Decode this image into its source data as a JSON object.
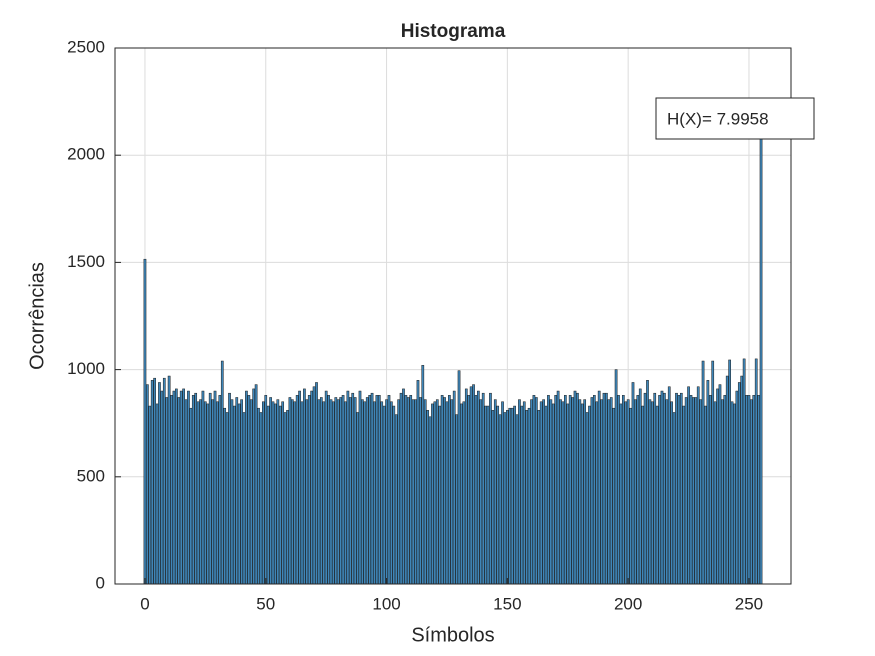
{
  "chart_data": {
    "type": "bar",
    "title": "Histograma",
    "x_label": "Símbolos",
    "y_label": "Ocorrências",
    "annotation": "H(X)= 7.9958",
    "x": [
      0,
      1,
      2,
      3,
      4,
      5,
      6,
      7,
      8,
      9,
      10,
      11,
      12,
      13,
      14,
      15,
      16,
      17,
      18,
      19,
      20,
      21,
      22,
      23,
      24,
      25,
      26,
      27,
      28,
      29,
      30,
      31,
      32,
      33,
      34,
      35,
      36,
      37,
      38,
      39,
      40,
      41,
      42,
      43,
      44,
      45,
      46,
      47,
      48,
      49,
      50,
      51,
      52,
      53,
      54,
      55,
      56,
      57,
      58,
      59,
      60,
      61,
      62,
      63,
      64,
      65,
      66,
      67,
      68,
      69,
      70,
      71,
      72,
      73,
      74,
      75,
      76,
      77,
      78,
      79,
      80,
      81,
      82,
      83,
      84,
      85,
      86,
      87,
      88,
      89,
      90,
      91,
      92,
      93,
      94,
      95,
      96,
      97,
      98,
      99,
      100,
      101,
      102,
      103,
      104,
      105,
      106,
      107,
      108,
      109,
      110,
      111,
      112,
      113,
      114,
      115,
      116,
      117,
      118,
      119,
      120,
      121,
      122,
      123,
      124,
      125,
      126,
      127,
      128,
      129,
      130,
      131,
      132,
      133,
      134,
      135,
      136,
      137,
      138,
      139,
      140,
      141,
      142,
      143,
      144,
      145,
      146,
      147,
      148,
      149,
      150,
      151,
      152,
      153,
      154,
      155,
      156,
      157,
      158,
      159,
      160,
      161,
      162,
      163,
      164,
      165,
      166,
      167,
      168,
      169,
      170,
      171,
      172,
      173,
      174,
      175,
      176,
      177,
      178,
      179,
      180,
      181,
      182,
      183,
      184,
      185,
      186,
      187,
      188,
      189,
      190,
      191,
      192,
      193,
      194,
      195,
      196,
      197,
      198,
      199,
      200,
      201,
      202,
      203,
      204,
      205,
      206,
      207,
      208,
      209,
      210,
      211,
      212,
      213,
      214,
      215,
      216,
      217,
      218,
      219,
      220,
      221,
      222,
      223,
      224,
      225,
      226,
      227,
      228,
      229,
      230,
      231,
      232,
      233,
      234,
      235,
      236,
      237,
      238,
      239,
      240,
      241,
      242,
      243,
      244,
      245,
      246,
      247,
      248,
      249,
      250,
      251,
      252,
      253,
      254,
      255
    ],
    "values": [
      1515,
      930,
      830,
      950,
      960,
      840,
      940,
      900,
      960,
      870,
      970,
      880,
      900,
      910,
      870,
      900,
      910,
      860,
      900,
      820,
      880,
      890,
      850,
      860,
      900,
      850,
      840,
      890,
      860,
      900,
      850,
      880,
      1040,
      820,
      800,
      890,
      860,
      830,
      870,
      840,
      860,
      800,
      900,
      880,
      860,
      910,
      930,
      820,
      800,
      850,
      880,
      830,
      870,
      850,
      840,
      860,
      830,
      850,
      800,
      810,
      870,
      860,
      850,
      880,
      900,
      850,
      910,
      860,
      880,
      900,
      920,
      940,
      860,
      870,
      850,
      900,
      880,
      860,
      850,
      870,
      860,
      870,
      880,
      850,
      900,
      870,
      890,
      870,
      800,
      900,
      860,
      850,
      870,
      880,
      890,
      850,
      880,
      880,
      850,
      830,
      860,
      880,
      850,
      830,
      790,
      860,
      890,
      910,
      880,
      870,
      880,
      860,
      860,
      950,
      870,
      1020,
      860,
      810,
      780,
      840,
      850,
      860,
      830,
      880,
      870,
      850,
      880,
      860,
      900,
      790,
      995,
      840,
      850,
      910,
      880,
      920,
      930,
      880,
      900,
      860,
      890,
      830,
      830,
      890,
      810,
      860,
      830,
      790,
      850,
      800,
      810,
      820,
      820,
      830,
      790,
      860,
      830,
      850,
      810,
      820,
      860,
      880,
      870,
      810,
      850,
      860,
      830,
      880,
      860,
      840,
      880,
      900,
      860,
      850,
      880,
      840,
      880,
      870,
      900,
      890,
      860,
      840,
      860,
      800,
      830,
      870,
      880,
      850,
      900,
      860,
      890,
      890,
      860,
      870,
      820,
      1000,
      880,
      840,
      880,
      850,
      860,
      820,
      940,
      860,
      880,
      910,
      830,
      890,
      950,
      860,
      850,
      890,
      830,
      880,
      900,
      890,
      860,
      920,
      850,
      800,
      890,
      880,
      890,
      830,
      870,
      920,
      880,
      870,
      870,
      920,
      860,
      1040,
      830,
      950,
      880,
      1040,
      850,
      910,
      930,
      860,
      880,
      970,
      1045,
      850,
      840,
      900,
      940,
      970,
      1050,
      880,
      880,
      860,
      880,
      1050,
      880,
      2120
    ],
    "color": "#3f86b8",
    "xlim": [
      -12.4,
      267.4
    ],
    "xticks": [
      0,
      50,
      100,
      150,
      200,
      250
    ],
    "ylim": [
      0,
      2500
    ],
    "yticks": [
      0,
      500,
      1000,
      1500,
      2000,
      2500
    ],
    "grid": true
  }
}
